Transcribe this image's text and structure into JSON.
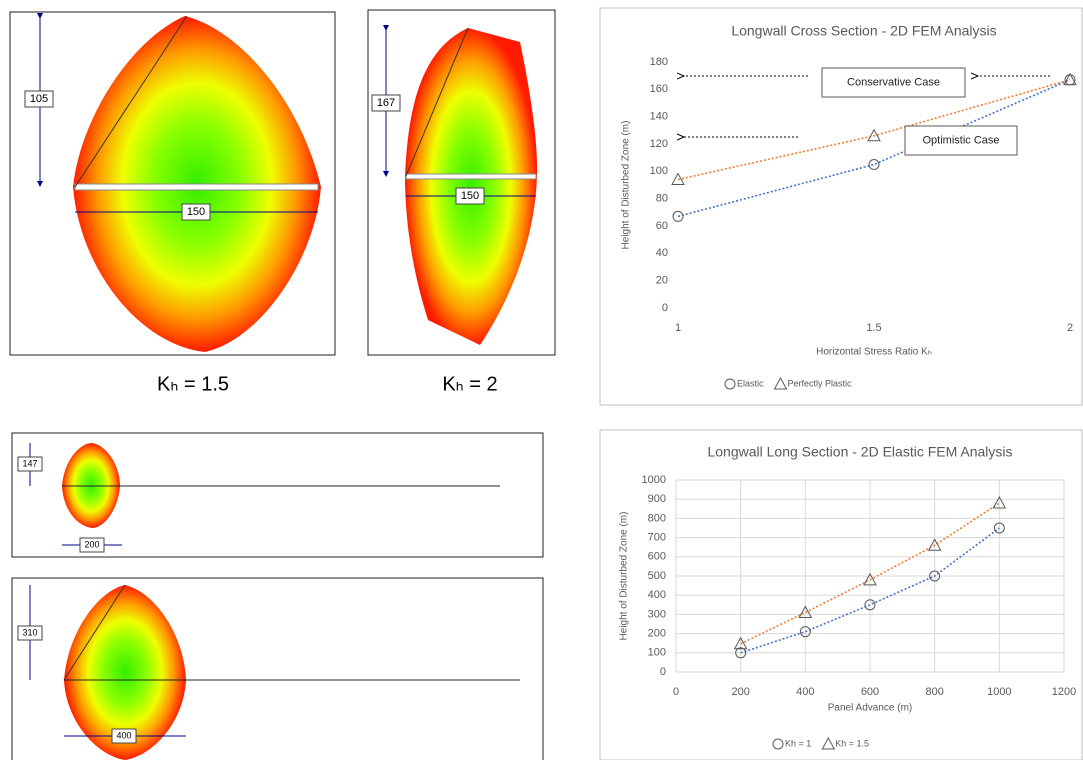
{
  "chart_data": [
    {
      "type": "line",
      "title": "Longwall Cross Section - 2D FEM Analysis",
      "x_label": "Horizontal Stress Ratio Kₕ",
      "y_label": "Height of Disturbed Zone (m)",
      "x": [
        1,
        1.5,
        2
      ],
      "series": [
        {
          "name": "Elastic",
          "color": "#4472c4",
          "marker": "circle",
          "values": [
            67,
            105,
            167
          ]
        },
        {
          "name": "Perfectly Plastic",
          "color": "#ed7d31",
          "marker": "triangle",
          "values": [
            94,
            126,
            167
          ]
        }
      ],
      "xlim": [
        1,
        2
      ],
      "xticks": [
        1,
        1.5,
        2
      ],
      "ylim": [
        0,
        180
      ],
      "yticks": [
        0,
        20,
        40,
        60,
        80,
        100,
        120,
        140,
        160,
        180
      ],
      "grid": false,
      "legend": "bottom",
      "annotations": [
        "Conservative Case",
        "Optimistic Case"
      ]
    },
    {
      "type": "line",
      "title": "Longwall Long Section - 2D Elastic FEM Analysis",
      "x_label": "Panel Advance (m)",
      "y_label": "Height of Disturbed Zone (m)",
      "x": [
        200,
        400,
        600,
        800,
        1000
      ],
      "series": [
        {
          "name": "Kh = 1",
          "color": "#4472c4",
          "marker": "circle",
          "values": [
            100,
            210,
            350,
            500,
            750
          ]
        },
        {
          "name": "Kh = 1.5",
          "color": "#ed7d31",
          "marker": "triangle",
          "values": [
            147,
            310,
            480,
            660,
            880
          ]
        }
      ],
      "xlim": [
        0,
        1200
      ],
      "xticks": [
        0,
        200,
        400,
        600,
        800,
        1000,
        1200
      ],
      "ylim": [
        0,
        1000
      ],
      "yticks": [
        0,
        100,
        200,
        300,
        400,
        500,
        600,
        700,
        800,
        900,
        1000
      ],
      "grid": true,
      "legend": "bottom",
      "annotations": []
    }
  ],
  "diagrams": {
    "panels": [
      {
        "height": 105,
        "width": 150,
        "caption": "Kₕ = 1.5"
      },
      {
        "height": 167,
        "width": 150,
        "caption": "Kₕ = 2"
      },
      {
        "height": 147,
        "width": 200
      },
      {
        "height": 310,
        "width": 400
      }
    ]
  }
}
